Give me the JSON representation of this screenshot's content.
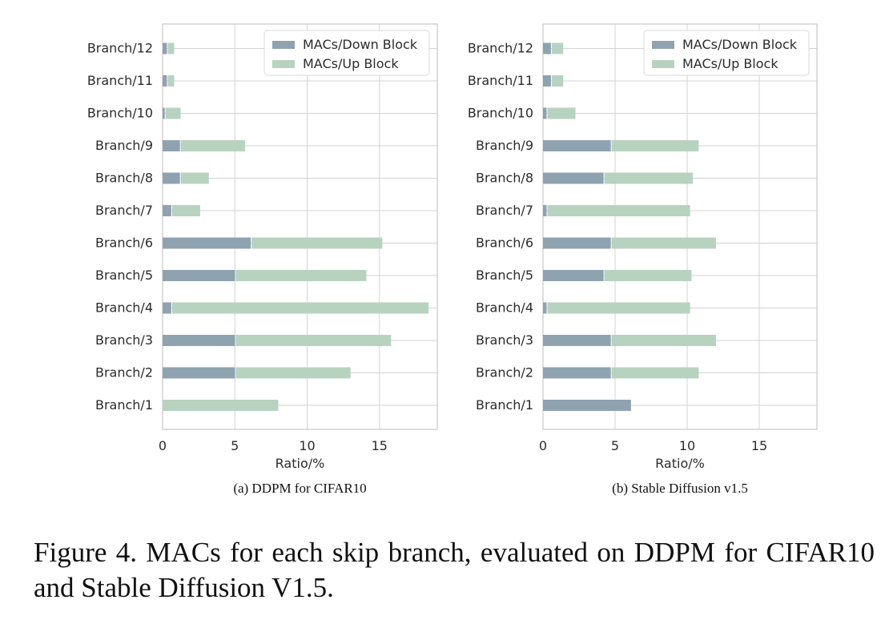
{
  "caption": "Figure 4.  MACs for each skip branch, evaluated on DDPM for CIFAR10 and Stable Diffusion V1.5.",
  "colors": {
    "down": "#8fa2b0",
    "up": "#b8d2c0",
    "grid": "#d3d3d3",
    "frame": "#c8c8c8"
  },
  "chart_data": [
    {
      "type": "bar",
      "orientation": "horizontal",
      "stacked": true,
      "subcaption": "(a) DDPM for CIFAR10",
      "xlabel": "Ratio/%",
      "xlim": [
        0,
        19
      ],
      "xticks": [
        0,
        5,
        10,
        15
      ],
      "grid": true,
      "legend": "upper-right",
      "categories": [
        "Branch/1",
        "Branch/2",
        "Branch/3",
        "Branch/4",
        "Branch/5",
        "Branch/6",
        "Branch/7",
        "Branch/8",
        "Branch/9",
        "Branch/10",
        "Branch/11",
        "Branch/12"
      ],
      "series": [
        {
          "name": "MACs/Down Block",
          "values": [
            0.0,
            5.0,
            5.0,
            0.6,
            5.0,
            6.1,
            0.6,
            1.2,
            1.2,
            0.15,
            0.3,
            0.3
          ]
        },
        {
          "name": "MACs/Up Block",
          "values": [
            8.0,
            8.0,
            10.8,
            17.8,
            9.1,
            9.1,
            2.0,
            2.0,
            4.5,
            1.1,
            0.5,
            0.5
          ]
        }
      ]
    },
    {
      "type": "bar",
      "orientation": "horizontal",
      "stacked": true,
      "subcaption": "(b) Stable Diffusion v1.5",
      "xlabel": "Ratio/%",
      "xlim": [
        0,
        19
      ],
      "xticks": [
        0,
        5,
        10,
        15
      ],
      "grid": true,
      "legend": "upper-right",
      "categories": [
        "Branch/1",
        "Branch/2",
        "Branch/3",
        "Branch/4",
        "Branch/5",
        "Branch/6",
        "Branch/7",
        "Branch/8",
        "Branch/9",
        "Branch/10",
        "Branch/11",
        "Branch/12"
      ],
      "series": [
        {
          "name": "MACs/Down Block",
          "values": [
            6.1,
            4.7,
            4.7,
            0.25,
            4.2,
            4.7,
            0.25,
            4.2,
            4.7,
            0.25,
            0.55,
            0.55
          ]
        },
        {
          "name": "MACs/Up Block",
          "values": [
            0.0,
            6.1,
            7.3,
            9.95,
            6.1,
            7.3,
            9.95,
            6.2,
            6.1,
            2.0,
            0.85,
            0.85
          ]
        }
      ]
    }
  ]
}
